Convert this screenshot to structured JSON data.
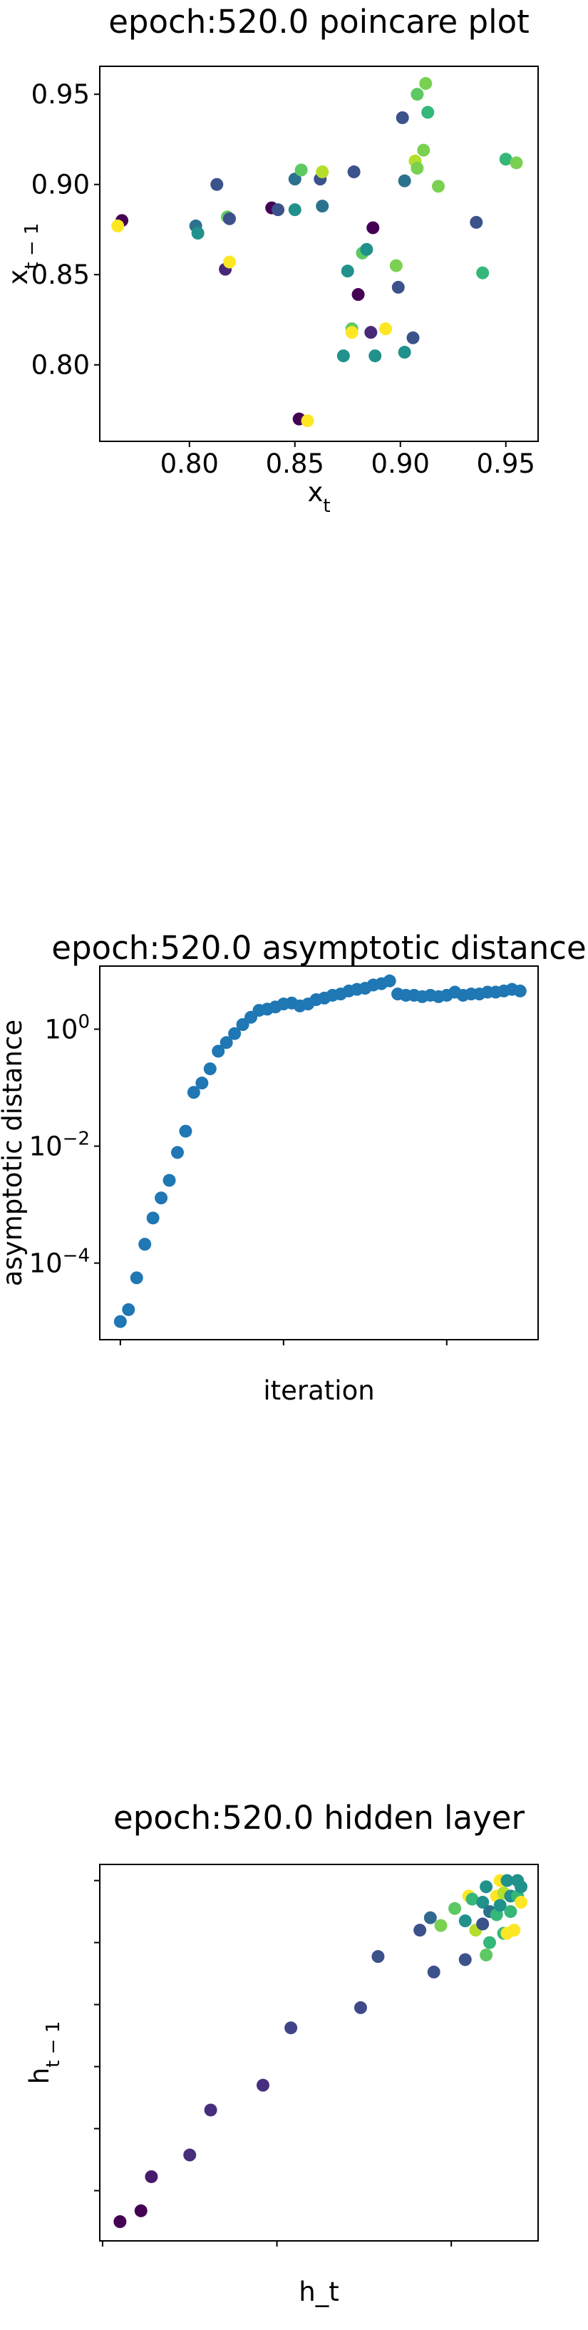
{
  "chart_data": [
    {
      "type": "scatter",
      "title": "epoch:520.0 poincare plot",
      "xlabel": {
        "base": "x",
        "sub": "t"
      },
      "ylabel": {
        "base": "x",
        "sub": "t − 1"
      },
      "x": [
        0.768,
        0.766,
        0.813,
        0.803,
        0.804,
        0.818,
        0.819,
        0.817,
        0.819,
        0.839,
        0.842,
        0.85,
        0.85,
        0.853,
        0.862,
        0.863,
        0.863,
        0.852,
        0.856,
        0.873,
        0.875,
        0.877,
        0.877,
        0.878,
        0.88,
        0.882,
        0.884,
        0.887,
        0.886,
        0.888,
        0.893,
        0.898,
        0.899,
        0.901,
        0.902,
        0.902,
        0.906,
        0.907,
        0.908,
        0.908,
        0.911,
        0.912,
        0.913,
        0.918,
        0.936,
        0.939,
        0.95,
        0.955
      ],
      "values": [
        0.88,
        0.877,
        0.9,
        0.877,
        0.873,
        0.882,
        0.881,
        0.853,
        0.857,
        0.887,
        0.886,
        0.886,
        0.903,
        0.908,
        0.903,
        0.907,
        0.888,
        0.77,
        0.769,
        0.805,
        0.852,
        0.82,
        0.818,
        0.907,
        0.839,
        0.862,
        0.864,
        0.876,
        0.818,
        0.805,
        0.82,
        0.855,
        0.843,
        0.937,
        0.902,
        0.807,
        0.815,
        0.913,
        0.909,
        0.95,
        0.919,
        0.956,
        0.94,
        0.899,
        0.879,
        0.851,
        0.914,
        0.912
      ],
      "colors": [
        "#440154",
        "#fde725",
        "#3b528b",
        "#2c728e",
        "#21918c",
        "#5ec962",
        "#3b528b",
        "#482878",
        "#fde725",
        "#440154",
        "#3b528b",
        "#21918c",
        "#2c728e",
        "#5ec962",
        "#3b528b",
        "#b5de2b",
        "#2c728e",
        "#440154",
        "#fde725",
        "#21918c",
        "#21918c",
        "#5ec962",
        "#fde725",
        "#3b528b",
        "#440154",
        "#5ec962",
        "#21918c",
        "#440154",
        "#482878",
        "#21918c",
        "#fde725",
        "#7ad151",
        "#3b528b",
        "#3b528b",
        "#2c728e",
        "#21918c",
        "#3b528b",
        "#b5de2b",
        "#7ad151",
        "#5ec962",
        "#7ad151",
        "#7ad151",
        "#35b779",
        "#7ad151",
        "#3b528b",
        "#35b779",
        "#35b779",
        "#7ad151"
      ],
      "xlim": [
        0.7575,
        0.9653
      ],
      "ylim": [
        0.7576,
        0.9655
      ],
      "xticks": [
        {
          "value": 0.8,
          "label": "0.80"
        },
        {
          "value": 0.85,
          "label": "0.85"
        },
        {
          "value": 0.9,
          "label": "0.90"
        },
        {
          "value": 0.95,
          "label": "0.95"
        }
      ],
      "yticks": [
        {
          "value": 0.8,
          "label": "0.80"
        },
        {
          "value": 0.85,
          "label": "0.85"
        },
        {
          "value": 0.9,
          "label": "0.90"
        },
        {
          "value": 0.95,
          "label": "0.95"
        }
      ]
    },
    {
      "type": "scatter",
      "title": "epoch:520.0 asymptotic distance",
      "xlabel": "iteration",
      "ylabel": "asymptotic distance",
      "log_y": true,
      "color": "#1f77b4",
      "x": [
        0,
        1,
        2,
        3,
        4,
        5,
        6,
        7,
        8,
        9,
        10,
        11,
        12,
        13,
        14,
        15,
        16,
        17,
        18,
        19,
        20,
        21,
        22,
        23,
        24,
        25,
        26,
        27,
        28,
        29,
        30,
        31,
        32,
        33,
        34,
        35,
        36,
        37,
        38,
        39,
        40,
        41,
        42,
        43,
        44,
        45,
        46,
        47,
        48,
        49
      ],
      "values": [
        1e-05,
        1.6e-05,
        5.6e-05,
        0.00021,
        0.00059,
        0.0013,
        0.0026,
        0.0078,
        0.018,
        0.083,
        0.12,
        0.21,
        0.42,
        0.59,
        0.84,
        1.2,
        1.6,
        2.1,
        2.2,
        2.4,
        2.7,
        2.8,
        2.5,
        2.7,
        3.2,
        3.4,
        3.8,
        4.0,
        4.5,
        4.8,
        5.0,
        5.7,
        6.0,
        6.7,
        4.0,
        3.8,
        3.8,
        3.6,
        3.8,
        3.6,
        3.8,
        4.3,
        3.8,
        4.0,
        4.0,
        4.3,
        4.3,
        4.5,
        4.8,
        4.5
      ],
      "xlim": [
        -2.52,
        51.2
      ],
      "ylim": [
        4.9e-06,
        12
      ],
      "xticks": [
        0,
        20,
        40
      ],
      "yticks": [
        {
          "value": 0.0001,
          "label": {
            "base": "10",
            "exp": "−4"
          }
        },
        {
          "value": 0.01,
          "label": {
            "base": "10",
            "exp": "−2"
          }
        },
        {
          "value": 1,
          "label": {
            "base": "10",
            "exp": "0"
          }
        }
      ]
    },
    {
      "type": "scatter",
      "title": "epoch:520.0 hidden layer",
      "xlabel": "h_t",
      "ylabel": {
        "base": "h",
        "sub": "t − 1"
      },
      "x": [
        0.5,
        1.1,
        1.4,
        2.5,
        3.1,
        4.6,
        5.4,
        7.4,
        7.9,
        9.5,
        9.1,
        9.4,
        9.7,
        10.1,
        10.4,
        10.4,
        10.5,
        10.6,
        10.7,
        10.9,
        10.9,
        11.0,
        11.0,
        11.1,
        11.1,
        11.3,
        11.3,
        11.4,
        11.4,
        11.5,
        11.5,
        11.6,
        11.6,
        11.7,
        11.7,
        11.8,
        11.9,
        11.9,
        12.0,
        12.0
      ],
      "values": [
        1.0,
        1.35,
        2.45,
        3.15,
        4.6,
        5.4,
        7.25,
        7.9,
        9.55,
        9.05,
        10.4,
        10.8,
        10.55,
        11.1,
        9.45,
        10.7,
        11.5,
        11.4,
        10.4,
        11.3,
        10.6,
        11.8,
        9.6,
        10.0,
        11.0,
        11.5,
        10.9,
        12.0,
        11.2,
        10.3,
        11.6,
        12.0,
        10.3,
        11.5,
        11.0,
        10.4,
        12.0,
        11.5,
        11.8,
        11.3
      ],
      "colors": [
        "#440154",
        "#440154",
        "#481a6c",
        "#472f7d",
        "#472f7d",
        "#46307e",
        "#414487",
        "#3e4a89",
        "#3b528b",
        "#3b528b",
        "#3b528b",
        "#31688e",
        "#7ad151",
        "#5ec962",
        "#3b528b",
        "#21918c",
        "#fde725",
        "#35b779",
        "#b5de2b",
        "#21918c",
        "#3b528b",
        "#21918c",
        "#5ec962",
        "#35b779",
        "#2c728e",
        "#fde725",
        "#35b779",
        "#fde725",
        "#21918c",
        "#35b779",
        "#b5de2b",
        "#21918c",
        "#fde725",
        "#21918c",
        "#35b779",
        "#fde725",
        "#21918c",
        "#35b779",
        "#21918c",
        "#fde725"
      ],
      "xlim": [
        -0.08,
        12.49
      ],
      "ylim": [
        0.38,
        12.52
      ],
      "xticks": [
        0,
        5,
        10
      ],
      "yticks": [
        2,
        4,
        6,
        8,
        10,
        12
      ]
    }
  ]
}
